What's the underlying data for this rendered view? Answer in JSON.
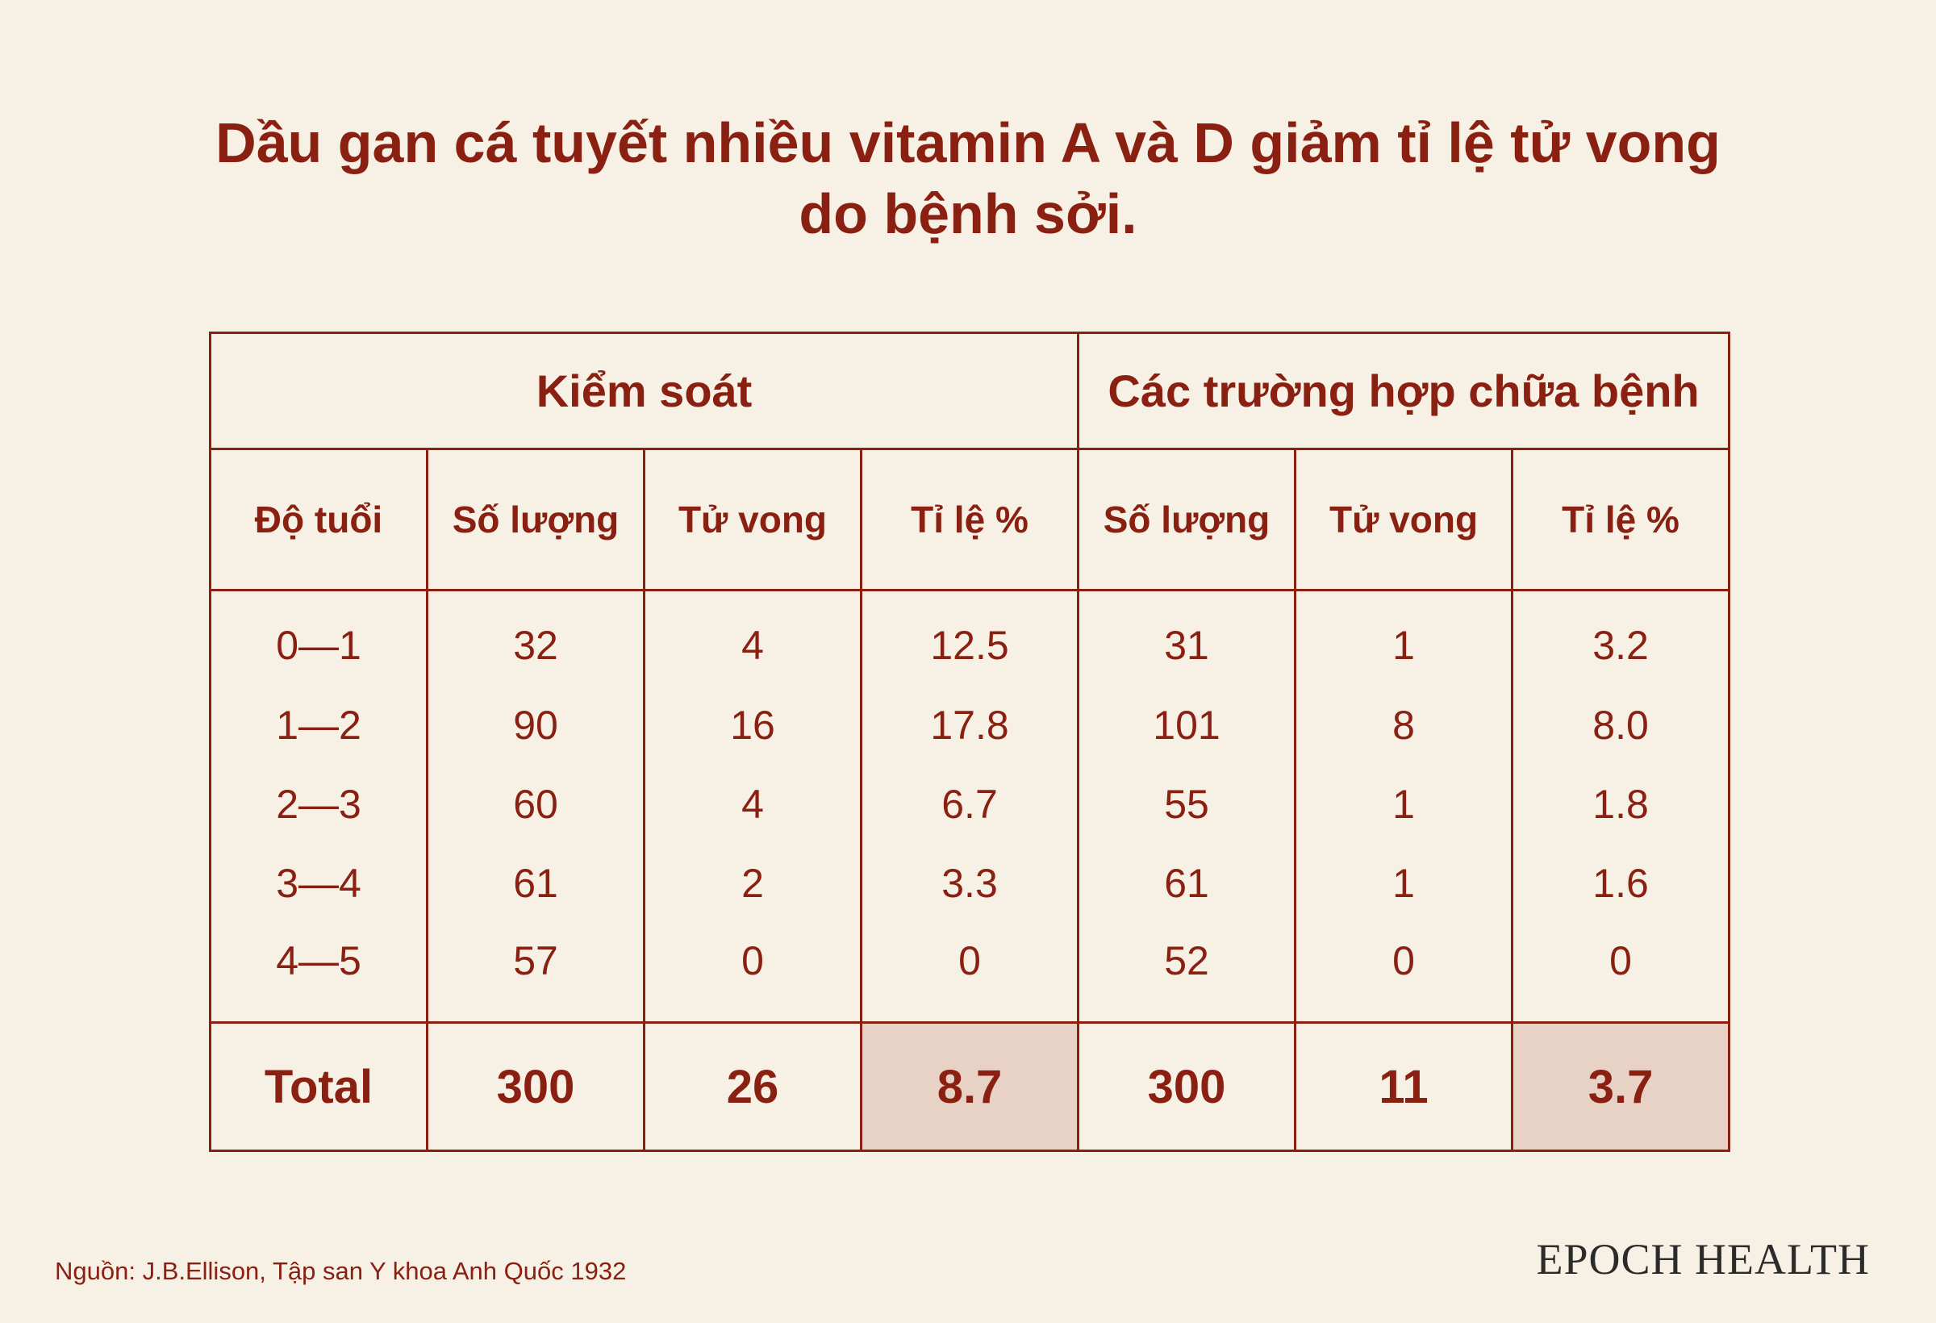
{
  "title_lines": [
    "Dầu gan cá tuyết nhiều vitamin A và D giảm tỉ lệ tử vong",
    "do bệnh sởi."
  ],
  "table": {
    "groups": [
      "Kiểm soát",
      "Các trường hợp chữa bệnh"
    ],
    "headers": [
      "Độ tuổi",
      "Số lượng",
      "Tử vong",
      "Tỉ lệ %",
      "Số lượng",
      "Tử vong",
      "Tỉ lệ %"
    ],
    "rows": [
      [
        "0—1",
        "32",
        "4",
        "12.5",
        "31",
        "1",
        "3.2"
      ],
      [
        "1—2",
        "90",
        "16",
        "17.8",
        "101",
        "8",
        "8.0"
      ],
      [
        "2—3",
        "60",
        "4",
        "6.7",
        "55",
        "1",
        "1.8"
      ],
      [
        "3—4",
        "61",
        "2",
        "3.3",
        "61",
        "1",
        "1.6"
      ],
      [
        "4—5",
        "57",
        "0",
        "0",
        "52",
        "0",
        "0"
      ]
    ],
    "total": [
      "Total",
      "300",
      "26",
      "8.7",
      "300",
      "11",
      "3.7"
    ]
  },
  "chart_data": {
    "type": "table",
    "title": "Dầu gan cá tuyết nhiều vitamin A và D giảm tỉ lệ tử vong do bệnh sởi.",
    "column_groups": [
      {
        "name": "Kiểm soát",
        "columns": [
          "Số lượng",
          "Tử vong",
          "Tỉ lệ %"
        ]
      },
      {
        "name": "Các trường hợp chữa bệnh",
        "columns": [
          "Số lượng",
          "Tử vong",
          "Tỉ lệ %"
        ]
      }
    ],
    "row_header": "Độ tuổi",
    "categories": [
      "0—1",
      "1—2",
      "2—3",
      "3—4",
      "4—5",
      "Total"
    ],
    "series": [
      {
        "name": "Kiểm soát - Số lượng",
        "values": [
          32,
          90,
          60,
          61,
          57,
          300
        ]
      },
      {
        "name": "Kiểm soát - Tử vong",
        "values": [
          4,
          16,
          4,
          2,
          0,
          26
        ]
      },
      {
        "name": "Kiểm soát - Tỉ lệ %",
        "values": [
          12.5,
          17.8,
          6.7,
          3.3,
          0,
          8.7
        ]
      },
      {
        "name": "Các trường hợp chữa bệnh - Số lượng",
        "values": [
          31,
          101,
          55,
          61,
          52,
          300
        ]
      },
      {
        "name": "Các trường hợp chữa bệnh - Tử vong",
        "values": [
          1,
          8,
          1,
          1,
          0,
          11
        ]
      },
      {
        "name": "Các trường hợp chữa bệnh - Tỉ lệ %",
        "values": [
          3.2,
          8.0,
          1.8,
          1.6,
          0,
          3.7
        ]
      }
    ],
    "highlighted_cells": [
      "Kiểm soát - Tỉ lệ % Total",
      "Các trường hợp chữa bệnh - Tỉ lệ % Total"
    ]
  },
  "source": "Nguồn: J.B.Ellison, Tập san Y khoa Anh Quốc 1932",
  "brand": "EPOCH HEALTH",
  "colors": {
    "background": "#f7f0e4",
    "accent": "#8a2012",
    "highlight": "#e8d1c5"
  }
}
